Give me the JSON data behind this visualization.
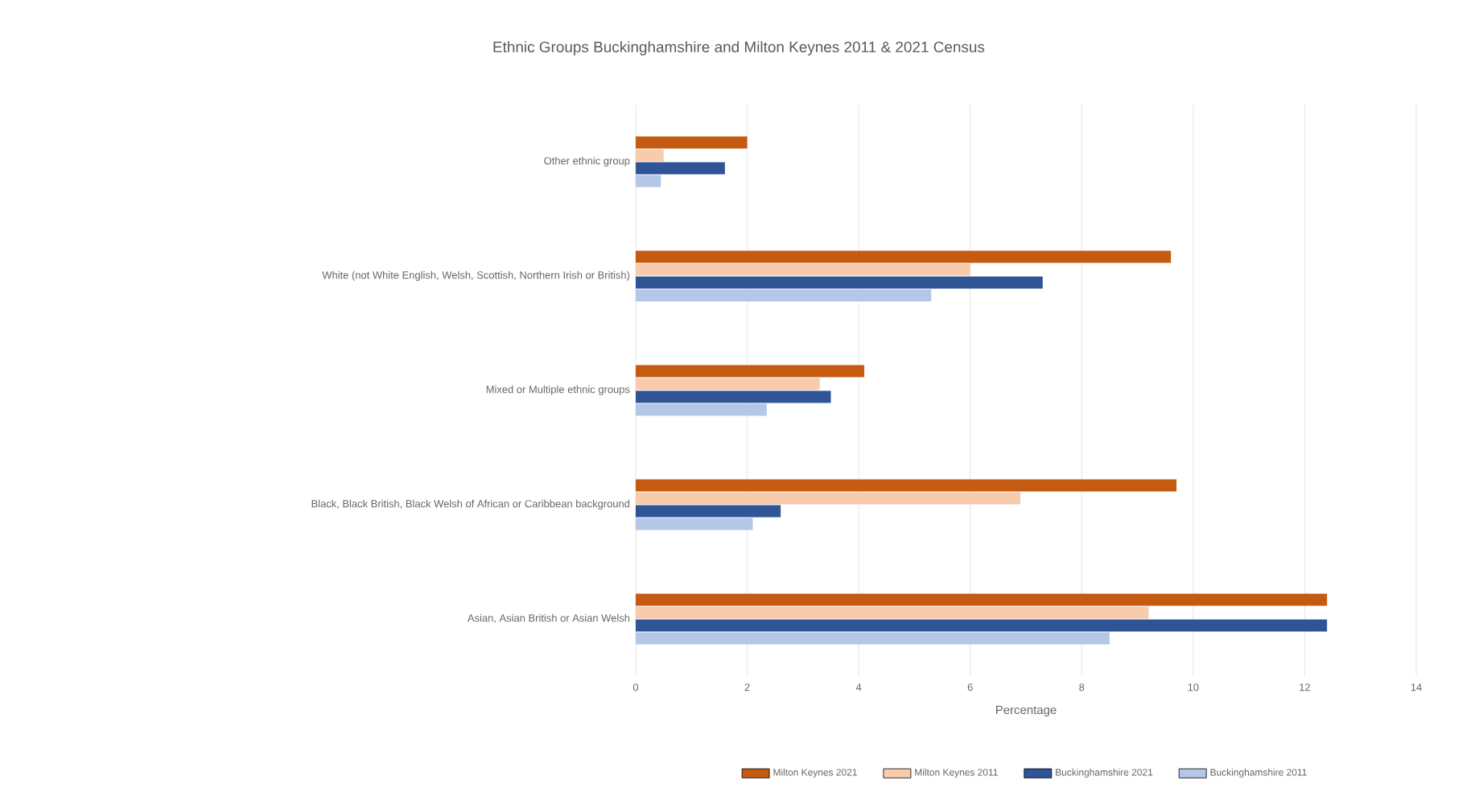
{
  "chart_data": {
    "type": "bar",
    "orientation": "horizontal",
    "title": "Ethnic Groups Buckinghamshire and Milton Keynes 2011 & 2021 Census",
    "xlabel": "Percentage",
    "categories": [
      "Other ethnic group",
      "White (not White English, Welsh, Scottish, Northern Irish or British)",
      "Mixed or Multiple ethnic groups",
      "Black, Black British, Black Welsh of African or Caribbean background",
      "Asian, Asian British or Asian Welsh"
    ],
    "series": [
      {
        "name": "Milton Keynes 2021",
        "color": "#c55a11",
        "values": [
          2.0,
          9.6,
          4.1,
          9.7,
          12.4
        ]
      },
      {
        "name": "Milton Keynes 2011",
        "color": "#f8cbad",
        "values": [
          0.5,
          6.0,
          3.3,
          6.9,
          9.2
        ]
      },
      {
        "name": "Buckinghamshire 2021",
        "color": "#2f5597",
        "values": [
          1.6,
          7.3,
          3.5,
          2.6,
          12.4
        ]
      },
      {
        "name": "Buckinghamshire 2011",
        "color": "#b4c7e7",
        "values": [
          0.45,
          5.3,
          2.35,
          2.1,
          8.5
        ]
      }
    ],
    "xlim": [
      0,
      14
    ],
    "xticks": [
      0,
      2,
      4,
      6,
      8,
      10,
      12,
      14
    ],
    "grid": "x",
    "legend": "bottom"
  }
}
